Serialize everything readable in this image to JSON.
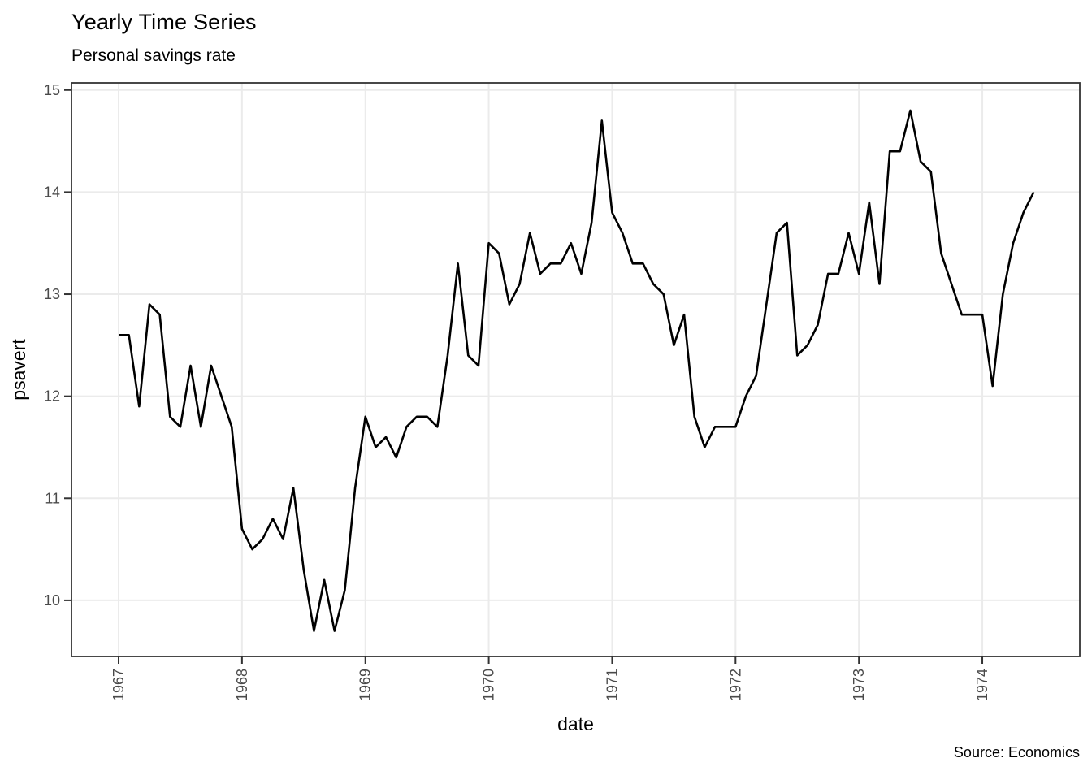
{
  "header": {
    "title": "Yearly Time Series",
    "subtitle": "Personal savings rate"
  },
  "footer": {
    "caption": "Source: Economics"
  },
  "colors": {
    "background": "#ffffff",
    "line": "#000000",
    "grid": "#ebebeb",
    "panel_border": "#333333",
    "tick_mark": "#333333",
    "tick_label": "#4a4a4a",
    "text": "#000000"
  },
  "chart_data": {
    "type": "line",
    "title": "Yearly Time Series",
    "subtitle": "Personal savings rate",
    "caption": "Source: Economics",
    "xlabel": "date",
    "ylabel": "psavert",
    "legend": "none",
    "grid": "major-only",
    "x_ticks": [
      1967,
      1968,
      1969,
      1970,
      1971,
      1972,
      1973,
      1974
    ],
    "y_ticks": [
      10,
      11,
      12,
      13,
      14,
      15
    ],
    "xlim": [
      1966.618,
      1974.79
    ],
    "ylim": [
      9.45,
      15.07
    ],
    "x_start": 1967.0,
    "x_step": 0.0833333,
    "x_unit": "decimal year (monthly points)",
    "series": [
      {
        "name": "psavert",
        "values": [
          12.6,
          12.6,
          11.9,
          12.9,
          12.8,
          11.8,
          11.7,
          12.3,
          11.7,
          12.3,
          12.0,
          11.7,
          10.7,
          10.5,
          10.6,
          10.8,
          10.6,
          11.1,
          10.3,
          9.7,
          10.2,
          9.7,
          10.1,
          11.1,
          11.8,
          11.5,
          11.6,
          11.4,
          11.7,
          11.8,
          11.8,
          11.7,
          12.4,
          13.3,
          12.4,
          12.3,
          13.5,
          13.4,
          12.9,
          13.1,
          13.6,
          13.2,
          13.3,
          13.3,
          13.5,
          13.2,
          13.7,
          14.7,
          13.8,
          13.6,
          13.3,
          13.3,
          13.1,
          13.0,
          12.5,
          12.8,
          11.8,
          11.5,
          11.7,
          11.7,
          11.7,
          12.0,
          12.2,
          12.9,
          13.6,
          13.7,
          12.4,
          12.5,
          12.7,
          13.2,
          13.2,
          13.6,
          13.2,
          13.9,
          13.1,
          14.4,
          14.4,
          14.8,
          14.3,
          14.2,
          13.4,
          13.1,
          12.8,
          12.8,
          12.8,
          12.1,
          13.0,
          13.5,
          13.8,
          14.0
        ]
      }
    ]
  },
  "layout_hints": {
    "x_tick_label_rotation_deg": -90
  }
}
